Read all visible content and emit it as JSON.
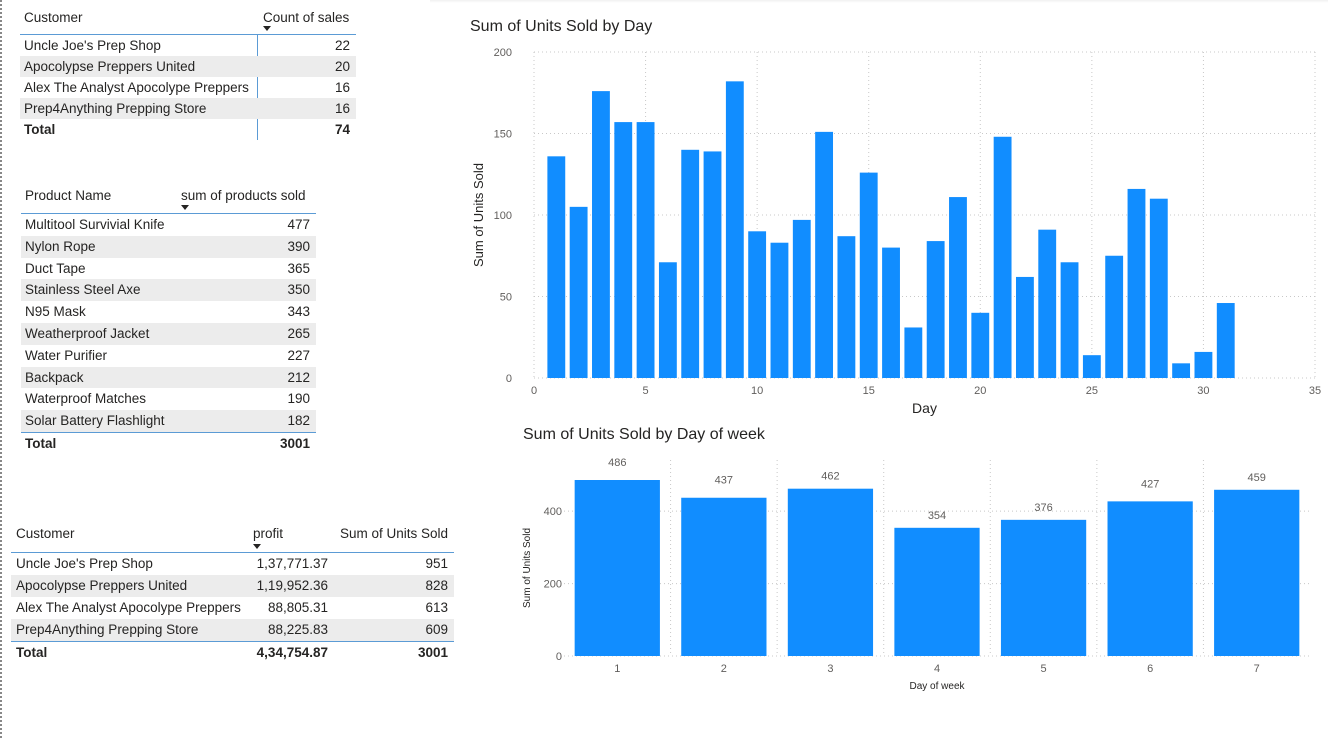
{
  "colors": {
    "bar": "#118DFF",
    "accent_line": "#5b9bd5",
    "row_alt": "#ececec",
    "grid": "#c8c8c8"
  },
  "sales_count_table": {
    "col1": "Customer",
    "col2": "Count of sales",
    "rows": [
      {
        "name": "Uncle Joe's Prep Shop",
        "value": "22"
      },
      {
        "name": "Apocolypse Preppers United",
        "value": "20"
      },
      {
        "name": "Alex The Analyst Apocolype Preppers",
        "value": "16"
      },
      {
        "name": "Prep4Anything Prepping Store",
        "value": "16"
      }
    ],
    "total_label": "Total",
    "total_value": "74"
  },
  "product_table": {
    "col1": "Product Name",
    "col2": "sum of products sold",
    "rows": [
      {
        "name": "Multitool Survivial Knife",
        "value": "477"
      },
      {
        "name": "Nylon Rope",
        "value": "390"
      },
      {
        "name": "Duct Tape",
        "value": "365"
      },
      {
        "name": "Stainless Steel Axe",
        "value": "350"
      },
      {
        "name": "N95 Mask",
        "value": "343"
      },
      {
        "name": "Weatherproof Jacket",
        "value": "265"
      },
      {
        "name": "Water Purifier",
        "value": "227"
      },
      {
        "name": "Backpack",
        "value": "212"
      },
      {
        "name": "Waterproof Matches",
        "value": "190"
      },
      {
        "name": "Solar Battery Flashlight",
        "value": "182"
      }
    ],
    "total_label": "Total",
    "total_value": "3001"
  },
  "profit_table": {
    "col1": "Customer",
    "col2": "profit",
    "col3": "Sum of Units Sold",
    "rows": [
      {
        "name": "Uncle Joe's Prep Shop",
        "profit": "1,37,771.37",
        "units": "951"
      },
      {
        "name": "Apocolypse Preppers United",
        "profit": "1,19,952.36",
        "units": "828"
      },
      {
        "name": "Alex The Analyst Apocolype Preppers",
        "profit": "88,805.31",
        "units": "613"
      },
      {
        "name": "Prep4Anything Prepping Store",
        "profit": "88,225.83",
        "units": "609"
      }
    ],
    "total_label": "Total",
    "total_profit": "4,34,754.87",
    "total_units": "3001"
  },
  "chart_data": [
    {
      "type": "bar",
      "title": "Sum of Units Sold by Day",
      "xlabel": "Day",
      "ylabel": "Sum of Units Sold",
      "x": [
        1,
        2,
        3,
        4,
        5,
        6,
        7,
        8,
        9,
        10,
        11,
        12,
        13,
        14,
        15,
        16,
        17,
        18,
        19,
        20,
        21,
        22,
        23,
        24,
        25,
        26,
        27,
        28,
        29,
        30,
        31
      ],
      "values": [
        136,
        105,
        176,
        157,
        157,
        71,
        140,
        139,
        182,
        90,
        83,
        97,
        151,
        87,
        126,
        80,
        31,
        84,
        111,
        40,
        148,
        62,
        91,
        71,
        14,
        75,
        116,
        110,
        9,
        16,
        46
      ],
      "xlim": [
        0,
        35
      ],
      "ylim": [
        0,
        200
      ],
      "xticks": [
        0,
        5,
        10,
        15,
        20,
        25,
        30,
        35
      ],
      "yticks": [
        0,
        50,
        100,
        150,
        200
      ],
      "grid": true
    },
    {
      "type": "bar",
      "title": "Sum of Units Sold by Day of week",
      "xlabel": "Day of week",
      "ylabel": "Sum of Units Sold",
      "categories": [
        "1",
        "2",
        "3",
        "4",
        "5",
        "6",
        "7"
      ],
      "values": [
        486,
        437,
        462,
        354,
        376,
        427,
        459
      ],
      "ylim": [
        0,
        486
      ],
      "yticks": [
        0,
        200,
        400
      ],
      "data_labels": true,
      "grid": true
    }
  ]
}
